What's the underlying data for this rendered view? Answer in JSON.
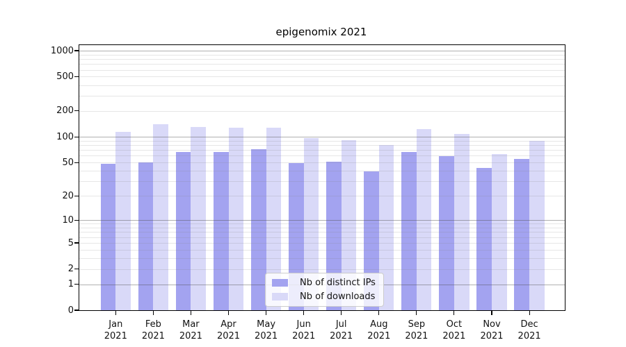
{
  "chart_data": {
    "type": "bar",
    "title": "epigenomix 2021",
    "year": "2021",
    "categories": [
      "Jan",
      "Feb",
      "Mar",
      "Apr",
      "May",
      "Jun",
      "Jul",
      "Aug",
      "Sep",
      "Oct",
      "Nov",
      "Dec"
    ],
    "series": [
      {
        "name": "Nb of distinct IPs",
        "color": "#a3a3f0",
        "values": [
          48,
          50,
          67,
          66,
          72,
          49,
          51,
          39,
          66,
          59,
          43,
          55
        ]
      },
      {
        "name": "Nb of downloads",
        "color": "#d9d9f8",
        "values": [
          114,
          140,
          130,
          128,
          127,
          97,
          92,
          80,
          124,
          109,
          63,
          90
        ]
      }
    ],
    "y_axis": {
      "scale": "log1p",
      "tick_labels": [
        "0",
        "1",
        "2",
        "5",
        "10",
        "20",
        "50",
        "100",
        "200",
        "500",
        "1000"
      ],
      "tick_values": [
        0,
        1,
        2,
        5,
        10,
        20,
        50,
        100,
        200,
        500,
        1000
      ],
      "major_gridlines": [
        1,
        10,
        100,
        1000
      ],
      "minor_gridlines": [
        2,
        3,
        4,
        5,
        6,
        7,
        8,
        9,
        20,
        30,
        40,
        50,
        60,
        70,
        80,
        90,
        200,
        300,
        400,
        500,
        600,
        700,
        800,
        900
      ],
      "ylim": [
        0,
        1150
      ]
    },
    "grid": true,
    "legend_position": "lower center"
  },
  "colors": {
    "bar_distinct_ips": "#a3a3f0",
    "bar_downloads": "#d9d9f8",
    "grid_major": "rgba(80,80,80,0.45)",
    "grid_minor": "rgba(130,130,130,0.20)",
    "spine": "#000000",
    "text": "#111111"
  }
}
